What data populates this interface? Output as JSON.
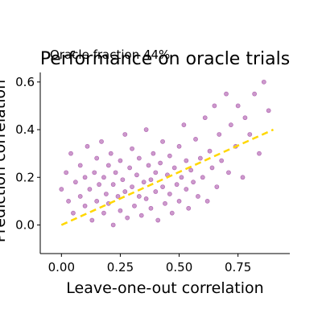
{
  "chart_data": {
    "type": "scatter",
    "title": "Performance on oracle trials",
    "annotation": "Oracle fraction 44%",
    "xlabel": "Leave-one-out correlation",
    "ylabel": "Prediction correlation",
    "xlim": [
      -0.09,
      0.97
    ],
    "ylim": [
      -0.12,
      0.64
    ],
    "xticks": [
      0.0,
      0.25,
      0.5,
      0.75
    ],
    "xtick_labels": [
      "0.00",
      "0.25",
      "0.50",
      "0.75"
    ],
    "yticks": [
      0.0,
      0.2,
      0.4,
      0.6
    ],
    "ytick_labels": [
      "0.0",
      "0.2",
      "0.4",
      "0.6"
    ],
    "grid": false,
    "series": [
      {
        "kind": "points",
        "color": "#800080",
        "points": [
          [
            0.0,
            0.15
          ],
          [
            0.02,
            0.22
          ],
          [
            0.03,
            0.1
          ],
          [
            0.04,
            0.3
          ],
          [
            0.05,
            0.05
          ],
          [
            0.06,
            0.18
          ],
          [
            0.08,
            0.12
          ],
          [
            0.08,
            0.25
          ],
          [
            0.1,
            0.2
          ],
          [
            0.1,
            0.08
          ],
          [
            0.11,
            0.33
          ],
          [
            0.12,
            0.15
          ],
          [
            0.13,
            0.02
          ],
          [
            0.14,
            0.22
          ],
          [
            0.15,
            0.28
          ],
          [
            0.15,
            0.1
          ],
          [
            0.16,
            0.17
          ],
          [
            0.17,
            0.35
          ],
          [
            0.18,
            0.05
          ],
          [
            0.18,
            0.2
          ],
          [
            0.19,
            0.13
          ],
          [
            0.2,
            0.25
          ],
          [
            0.2,
            0.09
          ],
          [
            0.21,
            0.3
          ],
          [
            0.22,
            0.17
          ],
          [
            0.22,
            0.0
          ],
          [
            0.23,
            0.22
          ],
          [
            0.24,
            0.12
          ],
          [
            0.25,
            0.27
          ],
          [
            0.25,
            0.06
          ],
          [
            0.26,
            0.19
          ],
          [
            0.27,
            0.38
          ],
          [
            0.27,
            0.14
          ],
          [
            0.28,
            0.03
          ],
          [
            0.29,
            0.24
          ],
          [
            0.3,
            0.16
          ],
          [
            0.3,
            0.32
          ],
          [
            0.31,
            0.08
          ],
          [
            0.32,
            0.21
          ],
          [
            0.33,
            0.12
          ],
          [
            0.33,
            0.28
          ],
          [
            0.34,
            0.04
          ],
          [
            0.35,
            0.18
          ],
          [
            0.36,
            0.4
          ],
          [
            0.36,
            0.11
          ],
          [
            0.37,
            0.25
          ],
          [
            0.38,
            0.07
          ],
          [
            0.38,
            0.19
          ],
          [
            0.39,
            0.3
          ],
          [
            0.4,
            0.14
          ],
          [
            0.4,
            0.22
          ],
          [
            0.41,
            0.02
          ],
          [
            0.42,
            0.26
          ],
          [
            0.43,
            0.16
          ],
          [
            0.43,
            0.35
          ],
          [
            0.44,
            0.09
          ],
          [
            0.45,
            0.21
          ],
          [
            0.46,
            0.13
          ],
          [
            0.46,
            0.29
          ],
          [
            0.47,
            0.05
          ],
          [
            0.48,
            0.24
          ],
          [
            0.49,
            0.17
          ],
          [
            0.5,
            0.33
          ],
          [
            0.5,
            0.1
          ],
          [
            0.51,
            0.2
          ],
          [
            0.52,
            0.42
          ],
          [
            0.53,
            0.15
          ],
          [
            0.53,
            0.27
          ],
          [
            0.54,
            0.07
          ],
          [
            0.55,
            0.23
          ],
          [
            0.56,
            0.18
          ],
          [
            0.57,
            0.36
          ],
          [
            0.58,
            0.12
          ],
          [
            0.59,
            0.28
          ],
          [
            0.6,
            0.2
          ],
          [
            0.61,
            0.45
          ],
          [
            0.62,
            0.1
          ],
          [
            0.63,
            0.31
          ],
          [
            0.64,
            0.24
          ],
          [
            0.65,
            0.5
          ],
          [
            0.66,
            0.16
          ],
          [
            0.67,
            0.38
          ],
          [
            0.68,
            0.27
          ],
          [
            0.7,
            0.55
          ],
          [
            0.71,
            0.22
          ],
          [
            0.72,
            0.42
          ],
          [
            0.74,
            0.33
          ],
          [
            0.75,
            0.5
          ],
          [
            0.77,
            0.2
          ],
          [
            0.78,
            0.45
          ],
          [
            0.8,
            0.38
          ],
          [
            0.82,
            0.55
          ],
          [
            0.84,
            0.3
          ],
          [
            0.86,
            0.6
          ],
          [
            0.88,
            0.48
          ]
        ]
      },
      {
        "kind": "trend",
        "color": "#ffd700",
        "from": [
          0.0,
          0.0
        ],
        "to": [
          0.9,
          0.4
        ]
      }
    ]
  }
}
